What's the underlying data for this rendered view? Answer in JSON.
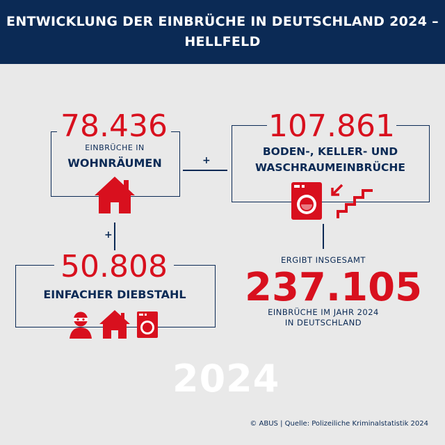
{
  "header": {
    "line1": "ENTWICKLUNG DER EINBRÜCHE IN DEUTSCHLAND 2024 –",
    "line2": "HELLFELD"
  },
  "wohnraeume": {
    "number": "78.436",
    "small": "EINBRÜCHE IN",
    "bold": "WOHNRÄUMEN"
  },
  "boden": {
    "number": "107.861",
    "bold1": "BODEN-, KELLER- UND",
    "bold2": "WASCHRAUMEINBRÜCHE"
  },
  "diebstahl": {
    "number": "50.808",
    "bold": "EINFACHER DIEBSTAHL"
  },
  "total": {
    "intro": "ERGIBT INSGESAMT",
    "number": "237.105",
    "line1": "EINBRÜCHE IM JAHR 2024",
    "line2": "IN DEUTSCHLAND"
  },
  "operators": {
    "plus": "+"
  },
  "year": "2024",
  "footer": "© ABUS | Quelle: Polizeiliche Kriminalstatistik 2024",
  "colors": {
    "navy": "#0b2a55",
    "red": "#d8101e",
    "background": "#e9e9e9"
  },
  "icons": [
    "house-icon",
    "washing-machine-icon",
    "stairs-icon",
    "burglar-icon"
  ]
}
